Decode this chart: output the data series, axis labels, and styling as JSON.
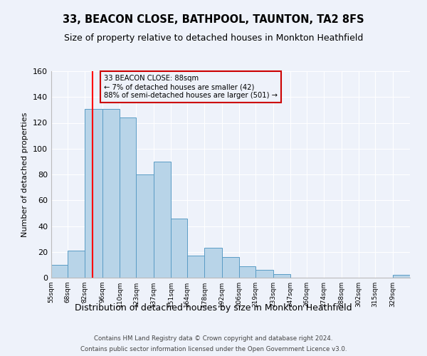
{
  "title": "33, BEACON CLOSE, BATHPOOL, TAUNTON, TA2 8FS",
  "subtitle": "Size of property relative to detached houses in Monkton Heathfield",
  "xlabel": "Distribution of detached houses by size in Monkton Heathfield",
  "ylabel": "Number of detached properties",
  "bin_labels": [
    "55sqm",
    "68sqm",
    "82sqm",
    "96sqm",
    "110sqm",
    "123sqm",
    "137sqm",
    "151sqm",
    "164sqm",
    "178sqm",
    "192sqm",
    "206sqm",
    "219sqm",
    "233sqm",
    "247sqm",
    "260sqm",
    "274sqm",
    "288sqm",
    "302sqm",
    "315sqm",
    "329sqm"
  ],
  "bin_edges": [
    55,
    68,
    82,
    96,
    110,
    123,
    137,
    151,
    164,
    178,
    192,
    206,
    219,
    233,
    247,
    260,
    274,
    288,
    302,
    315,
    329
  ],
  "bar_heights": [
    10,
    21,
    131,
    131,
    124,
    80,
    90,
    46,
    17,
    23,
    16,
    9,
    6,
    3,
    0,
    0,
    0,
    0,
    0,
    0,
    2
  ],
  "bar_color": "#b8d4e8",
  "bar_edge_color": "#5a9cc5",
  "red_line_x": 88,
  "annotation_text": "33 BEACON CLOSE: 88sqm\n← 7% of detached houses are smaller (42)\n88% of semi-detached houses are larger (501) →",
  "annotation_box_edge": "#cc0000",
  "ylim": [
    0,
    160
  ],
  "yticks": [
    0,
    20,
    40,
    60,
    80,
    100,
    120,
    140,
    160
  ],
  "footer_line1": "Contains HM Land Registry data © Crown copyright and database right 2024.",
  "footer_line2": "Contains public sector information licensed under the Open Government Licence v3.0.",
  "bg_color": "#eef2fa",
  "grid_color": "#ffffff",
  "title_fontsize": 10.5,
  "subtitle_fontsize": 9
}
